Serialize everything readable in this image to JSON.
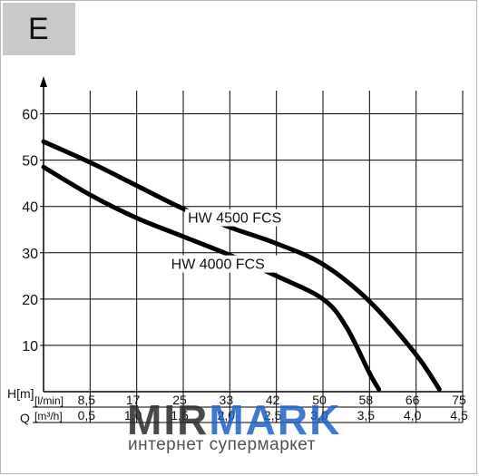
{
  "badge": {
    "letter": "E"
  },
  "watermark": {
    "part1": "MIR",
    "part2": "MARK",
    "subtitle": "интернет супермаркет"
  },
  "chart_data": {
    "type": "line",
    "ylabel": "H[m]",
    "xlabel": "Q",
    "ylim": [
      0,
      65
    ],
    "yticks": [
      10,
      20,
      30,
      40,
      50,
      60
    ],
    "xlim": [
      0,
      4.5
    ],
    "x_rows": [
      {
        "unit": "[l/min]",
        "ticks": [
          "8,5",
          "17",
          "25",
          "33",
          "42",
          "50",
          "58",
          "66",
          "75"
        ]
      },
      {
        "unit": "[m³/h]",
        "ticks": [
          "0,5",
          "1,0",
          "1,5",
          "2,0",
          "2,5",
          "3,0",
          "3,5",
          "4,0",
          "4,5"
        ]
      }
    ],
    "x_tick_values": [
      0.5,
      1.0,
      1.5,
      2.0,
      2.5,
      3.0,
      3.5,
      4.0,
      4.5
    ],
    "grid": true,
    "series": [
      {
        "name": "HW 4500 FCS",
        "points": [
          [
            0,
            54
          ],
          [
            0.5,
            49.5
          ],
          [
            1.0,
            44.5
          ],
          [
            1.5,
            39.5
          ],
          [
            2.0,
            35.5
          ],
          [
            2.5,
            32
          ],
          [
            3.0,
            27.5
          ],
          [
            3.5,
            19.5
          ],
          [
            4.0,
            8
          ],
          [
            4.25,
            0.5
          ]
        ]
      },
      {
        "name": "HW 4000 FCS",
        "points": [
          [
            0,
            48.5
          ],
          [
            0.5,
            42.5
          ],
          [
            1.0,
            37.5
          ],
          [
            1.5,
            33.5
          ],
          [
            2.0,
            29.5
          ],
          [
            2.5,
            25
          ],
          [
            3.0,
            20
          ],
          [
            3.25,
            14
          ],
          [
            3.5,
            4
          ],
          [
            3.6,
            0.5
          ]
        ]
      }
    ]
  }
}
